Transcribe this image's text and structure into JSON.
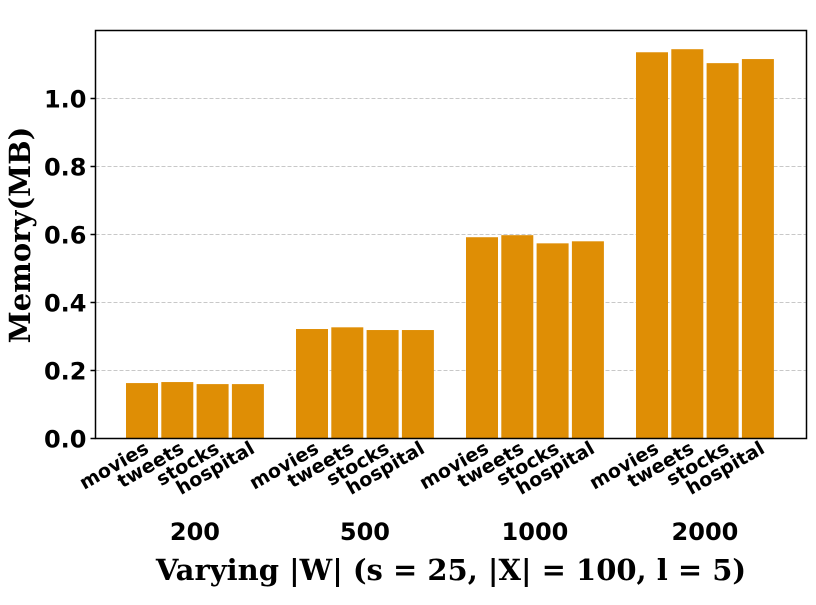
{
  "chart_data": {
    "type": "bar",
    "title": "",
    "xlabel": "Varying |W| (s = 25, |X| = 100, l = 5)",
    "ylabel": "Memory(MB)",
    "ylim": [
      0,
      1.2
    ],
    "yticks": [
      "0.0",
      "0.2",
      "0.4",
      "0.6",
      "0.8",
      "1.0"
    ],
    "grid": true,
    "groups": [
      "200",
      "500",
      "1000",
      "2000"
    ],
    "categories": [
      "movies",
      "tweets",
      "stocks",
      "hospital"
    ],
    "series": [
      {
        "name": "200",
        "values": [
          0.163,
          0.166,
          0.16,
          0.16
        ]
      },
      {
        "name": "500",
        "values": [
          0.322,
          0.327,
          0.319,
          0.319
        ]
      },
      {
        "name": "1000",
        "values": [
          0.592,
          0.598,
          0.574,
          0.58
        ]
      },
      {
        "name": "2000",
        "values": [
          1.136,
          1.145,
          1.104,
          1.116
        ]
      }
    ],
    "bar_color": "#df8e05"
  }
}
